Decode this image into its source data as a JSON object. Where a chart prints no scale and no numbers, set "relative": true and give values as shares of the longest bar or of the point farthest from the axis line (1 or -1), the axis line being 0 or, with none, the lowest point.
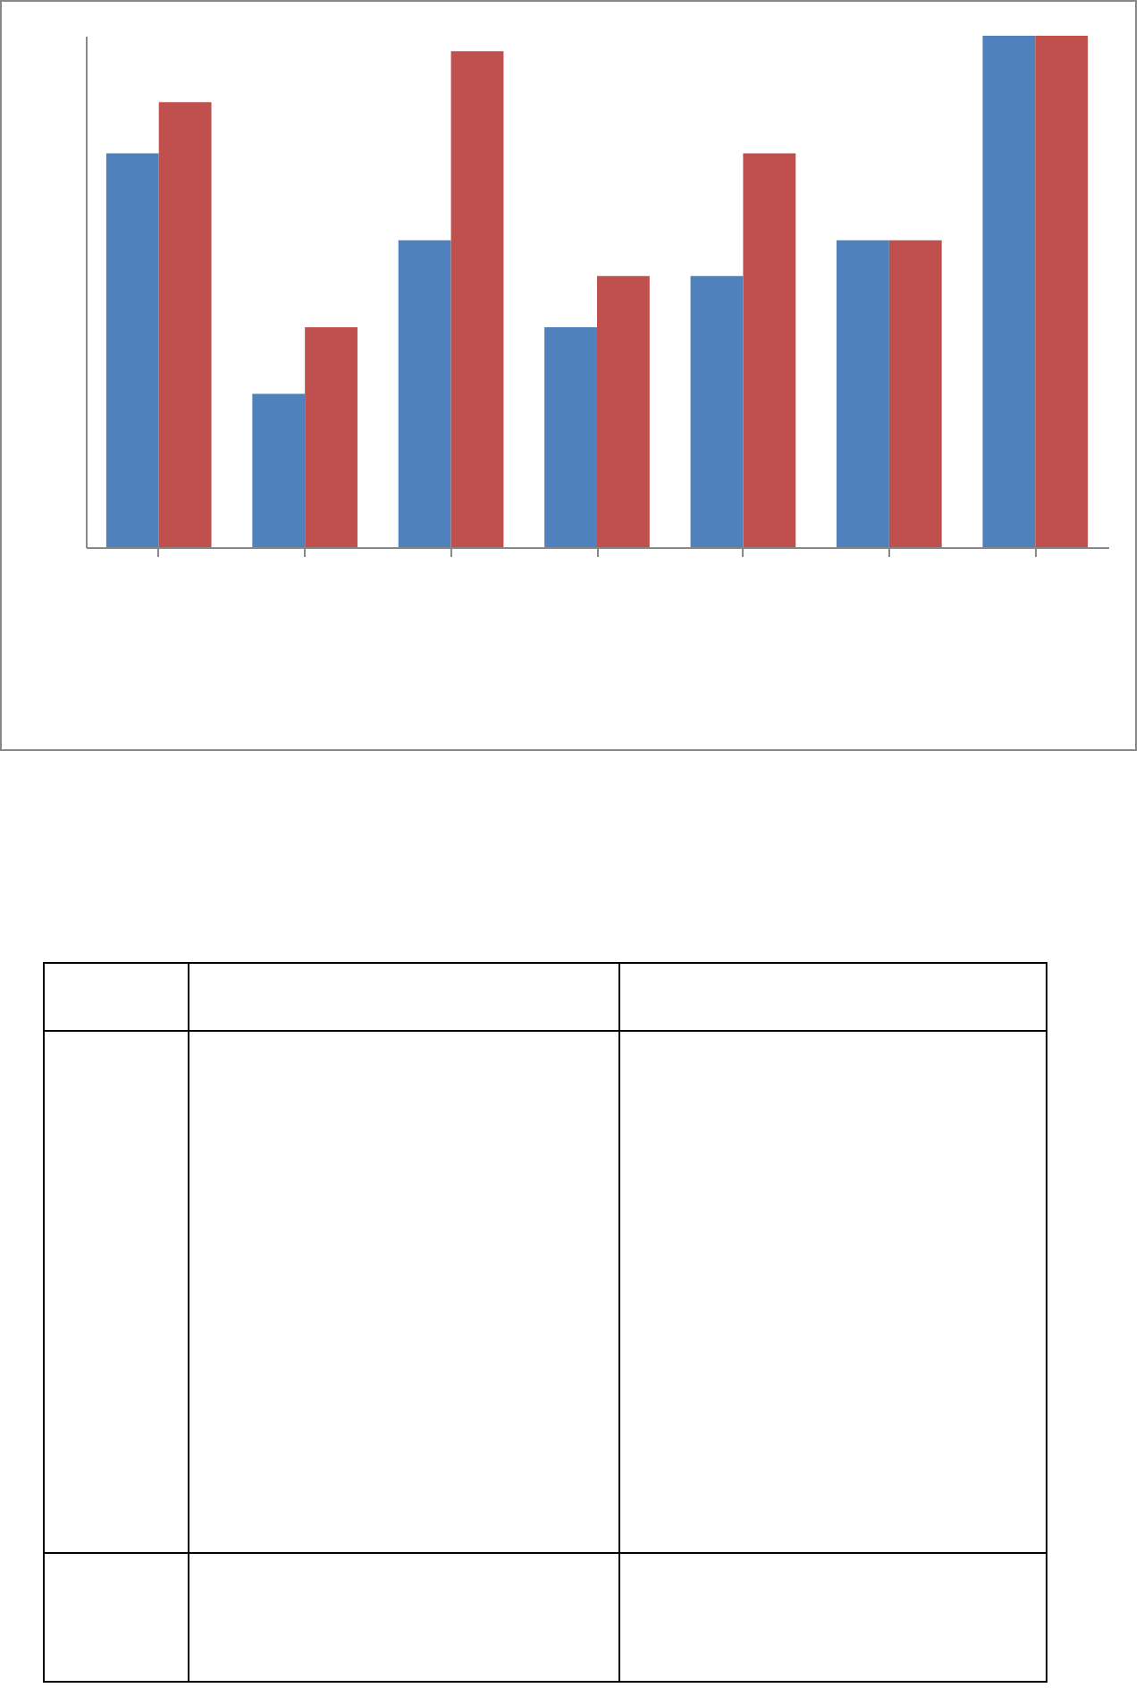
{
  "chart_data": {
    "type": "bar",
    "relative": true,
    "categories": [
      null,
      null,
      null,
      null,
      null,
      null,
      null
    ],
    "series": [
      {
        "color": "#4f81bd",
        "values": [
          0.77,
          0.3,
          0.6,
          0.43,
          0.53,
          0.6,
          1
        ]
      },
      {
        "color": "#c0504d",
        "values": [
          0.87,
          0.43,
          0.97,
          0.53,
          0.77,
          0.6,
          1
        ]
      }
    ]
  }
}
